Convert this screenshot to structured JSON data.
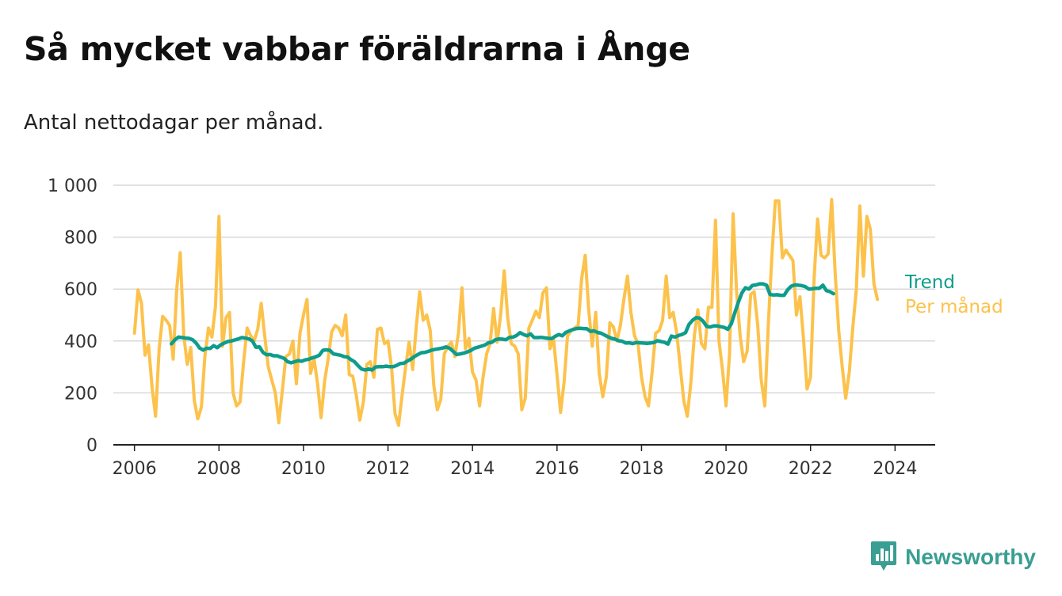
{
  "header": {
    "title": "Så mycket vabbar föräldrarna i Ånge",
    "subtitle": "Antal nettodagar per månad."
  },
  "brand": {
    "name": "Newsworthy",
    "icon": "bar-chart-speech-bubble-icon",
    "color": "#3a9e92"
  },
  "colors": {
    "trend": "#0e9c8c",
    "monthly": "#fcc24b",
    "grid": "#d9d9d9",
    "axis": "#222222"
  },
  "chart_data": {
    "type": "line",
    "title": "Så mycket vabbar föräldrarna i Ånge",
    "subtitle": "Antal nettodagar per månad.",
    "xlabel": "",
    "ylabel": "",
    "xlim": [
      2005.5,
      2024.95
    ],
    "ylim": [
      0,
      1000
    ],
    "x_ticks": [
      2006,
      2008,
      2010,
      2012,
      2014,
      2016,
      2018,
      2020,
      2022,
      2024
    ],
    "x_tick_labels": [
      "2006",
      "2008",
      "2010",
      "2012",
      "2014",
      "2016",
      "2018",
      "2020",
      "2022",
      "2024"
    ],
    "y_ticks": [
      0,
      200,
      400,
      600,
      800,
      1000
    ],
    "y_tick_labels": [
      "0",
      "200",
      "400",
      "600",
      "800",
      "1 000"
    ],
    "grid": true,
    "legend": "labels at end of lines, right",
    "series": [
      {
        "name": "Trend",
        "color": "#0e9c8c",
        "x_start": 2006.875,
        "step": 0.08333333,
        "values": [
          389,
          405,
          415,
          413,
          411,
          410,
          405,
          392,
          373,
          365,
          372,
          371,
          382,
          374,
          385,
          392,
          398,
          400,
          404,
          408,
          413,
          411,
          408,
          400,
          376,
          377,
          356,
          347,
          348,
          343,
          343,
          338,
          333,
          320,
          316,
          320,
          324,
          322,
          327,
          330,
          335,
          339,
          345,
          364,
          366,
          364,
          350,
          348,
          345,
          340,
          338,
          328,
          320,
          305,
          292,
          288,
          292,
          288,
          300,
          301,
          301,
          303,
          301,
          301,
          306,
          313,
          314,
          323,
          330,
          340,
          348,
          355,
          356,
          360,
          365,
          368,
          370,
          373,
          377,
          372,
          360,
          348,
          350,
          353,
          358,
          363,
          372,
          376,
          380,
          384,
          393,
          395,
          405,
          408,
          407,
          405,
          414,
          415,
          421,
          432,
          425,
          420,
          427,
          413,
          413,
          414,
          412,
          410,
          409,
          418,
          425,
          420,
          433,
          439,
          444,
          448,
          449,
          448,
          447,
          437,
          439,
          433,
          430,
          423,
          416,
          410,
          407,
          401,
          399,
          392,
          393,
          390,
          394,
          393,
          392,
          391,
          392,
          394,
          401,
          398,
          395,
          388,
          419,
          415,
          421,
          425,
          432,
          464,
          480,
          490,
          488,
          476,
          456,
          454,
          458,
          458,
          455,
          452,
          445,
          466,
          509,
          549,
          585,
          605,
          600,
          614,
          616,
          620,
          620,
          615,
          579,
          577,
          578,
          576,
          576,
          597,
          611,
          616,
          615,
          613,
          609,
          600,
          601,
          603,
          603,
          615,
          594,
          590,
          582
        ]
      },
      {
        "name": "Per månad",
        "color": "#fcc24b",
        "x_start": 2006.0,
        "step": 0.08333333,
        "values": [
          430,
          597,
          545,
          345,
          385,
          220,
          110,
          370,
          495,
          480,
          460,
          330,
          600,
          740,
          420,
          310,
          375,
          170,
          100,
          145,
          340,
          450,
          415,
          530,
          880,
          380,
          490,
          510,
          200,
          150,
          165,
          320,
          450,
          420,
          400,
          445,
          545,
          420,
          300,
          250,
          200,
          85,
          210,
          340,
          350,
          400,
          235,
          430,
          500,
          560,
          275,
          330,
          235,
          105,
          245,
          330,
          435,
          460,
          450,
          420,
          500,
          270,
          265,
          190,
          95,
          165,
          310,
          320,
          260,
          445,
          450,
          390,
          400,
          300,
          120,
          75,
          190,
          300,
          395,
          290,
          450,
          590,
          480,
          500,
          440,
          230,
          135,
          175,
          350,
          380,
          395,
          340,
          430,
          605,
          370,
          410,
          280,
          250,
          150,
          260,
          350,
          390,
          525,
          395,
          500,
          670,
          490,
          390,
          380,
          350,
          135,
          180,
          450,
          480,
          515,
          490,
          585,
          605,
          370,
          410,
          270,
          125,
          240,
          420,
          440,
          450,
          460,
          640,
          730,
          520,
          380,
          510,
          275,
          185,
          260,
          470,
          455,
          400,
          460,
          560,
          650,
          510,
          420,
          390,
          260,
          185,
          150,
          280,
          430,
          440,
          480,
          650,
          490,
          510,
          430,
          300,
          170,
          110,
          240,
          420,
          520,
          390,
          370,
          530,
          530,
          865,
          400,
          290,
          150,
          350,
          890,
          590,
          420,
          320,
          360,
          580,
          590,
          460,
          250,
          150,
          460,
          720,
          940,
          940,
          720,
          750,
          730,
          710,
          500,
          570,
          410,
          215,
          260,
          640,
          870,
          730,
          720,
          735,
          945,
          660,
          440,
          300,
          180,
          280,
          450,
          600,
          920,
          650,
          880,
          830,
          620,
          560
        ]
      }
    ]
  }
}
